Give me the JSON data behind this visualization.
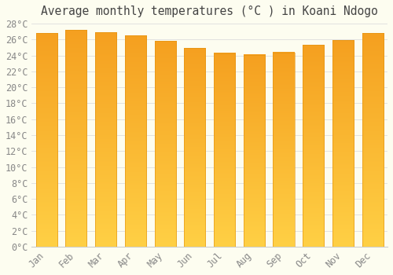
{
  "title": "Average monthly temperatures (°C ) in Koani Ndogo",
  "months": [
    "Jan",
    "Feb",
    "Mar",
    "Apr",
    "May",
    "Jun",
    "Jul",
    "Aug",
    "Sep",
    "Oct",
    "Nov",
    "Dec"
  ],
  "temperatures": [
    26.8,
    27.2,
    26.9,
    26.5,
    25.8,
    24.9,
    24.3,
    24.1,
    24.4,
    25.3,
    25.9,
    26.8
  ],
  "bar_color_bottom": "#FFD045",
  "bar_color_top": "#F5A020",
  "ylim": [
    0,
    28
  ],
  "ytick_step": 2,
  "background_color": "#FDFDF0",
  "grid_color": "#dddddd",
  "title_fontsize": 10.5,
  "tick_fontsize": 8.5,
  "tick_color": "#888888",
  "title_color": "#444444",
  "bar_width": 0.72
}
